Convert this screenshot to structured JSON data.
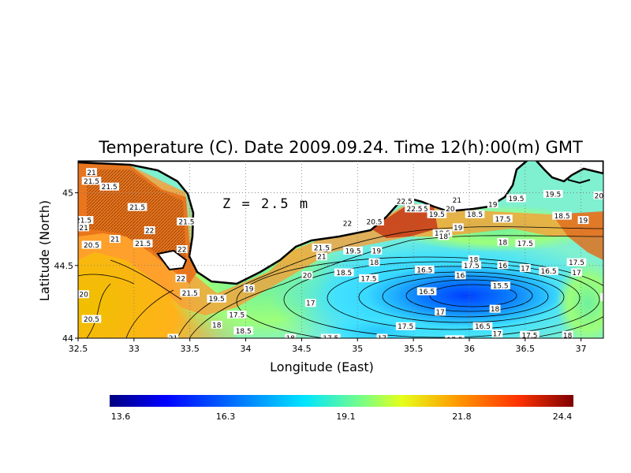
{
  "map": {
    "title": "Temperature (C). Date 2009.09.24. Time 12(h):00(m) GMT",
    "xlabel": "Longitude (East)",
    "ylabel": "Latitude (North)",
    "annotation": "Z = 2.5 m",
    "x_ticks": [
      "32.5",
      "33",
      "33.5",
      "34",
      "34.5",
      "35",
      "35.5",
      "36",
      "36.5",
      "37"
    ],
    "x_tick_values": [
      32.5,
      33,
      33.5,
      34,
      34.5,
      35,
      35.5,
      36,
      36.5,
      37
    ],
    "y_ticks": [
      "44",
      "44.5",
      "45"
    ],
    "y_tick_values": [
      44,
      44.5,
      45
    ],
    "xlim": [
      32.5,
      37.2
    ],
    "ylim": [
      44.0,
      45.22
    ],
    "colorbar": {
      "ticks": [
        "13.6",
        "16.3",
        "19.1",
        "21.8",
        "24.4"
      ],
      "range": [
        13.6,
        24.4
      ],
      "colors": [
        "#00007f",
        "#0000ff",
        "#0088ff",
        "#00e5ff",
        "#7fff7f",
        "#e5ff1a",
        "#ff9900",
        "#ff3300",
        "#7f0000"
      ]
    },
    "land_color": "#ffffff",
    "coast_color": "#000000",
    "contour_labels": [
      {
        "text": "21",
        "lon": 32.62,
        "lat": 45.14
      },
      {
        "text": "21.5",
        "lon": 32.62,
        "lat": 45.08
      },
      {
        "text": "21.5",
        "lon": 32.78,
        "lat": 45.04
      },
      {
        "text": "21.5",
        "lon": 32.55,
        "lat": 44.81
      },
      {
        "text": "21",
        "lon": 32.55,
        "lat": 44.76
      },
      {
        "text": "21",
        "lon": 32.83,
        "lat": 44.68
      },
      {
        "text": "20.5",
        "lon": 32.62,
        "lat": 44.64
      },
      {
        "text": "21.5",
        "lon": 33.03,
        "lat": 44.9
      },
      {
        "text": "22",
        "lon": 33.14,
        "lat": 44.74
      },
      {
        "text": "21.5",
        "lon": 33.08,
        "lat": 44.65
      },
      {
        "text": "21.5",
        "lon": 33.47,
        "lat": 44.8
      },
      {
        "text": "22",
        "lon": 33.43,
        "lat": 44.61
      },
      {
        "text": "22",
        "lon": 33.42,
        "lat": 44.41
      },
      {
        "text": "21.5",
        "lon": 33.5,
        "lat": 44.31
      },
      {
        "text": "20",
        "lon": 32.55,
        "lat": 44.3
      },
      {
        "text": "20.5",
        "lon": 32.62,
        "lat": 44.13
      },
      {
        "text": "21",
        "lon": 33.35,
        "lat": 44.0
      },
      {
        "text": "19.5",
        "lon": 33.74,
        "lat": 44.27
      },
      {
        "text": "19",
        "lon": 34.03,
        "lat": 44.34
      },
      {
        "text": "18",
        "lon": 33.74,
        "lat": 44.09
      },
      {
        "text": "17.5",
        "lon": 33.92,
        "lat": 44.16
      },
      {
        "text": "18.5",
        "lon": 33.98,
        "lat": 44.05
      },
      {
        "text": "18",
        "lon": 34.4,
        "lat": 44.0
      },
      {
        "text": "17.5",
        "lon": 34.76,
        "lat": 44.0
      },
      {
        "text": "17",
        "lon": 34.58,
        "lat": 44.24
      },
      {
        "text": "20",
        "lon": 34.55,
        "lat": 44.43
      },
      {
        "text": "21.5",
        "lon": 34.68,
        "lat": 44.62
      },
      {
        "text": "21",
        "lon": 34.68,
        "lat": 44.56
      },
      {
        "text": "18.5",
        "lon": 34.88,
        "lat": 44.45
      },
      {
        "text": "22",
        "lon": 34.91,
        "lat": 44.79
      },
      {
        "text": "20.5",
        "lon": 35.15,
        "lat": 44.8
      },
      {
        "text": "19.5",
        "lon": 34.96,
        "lat": 44.6
      },
      {
        "text": "19",
        "lon": 35.17,
        "lat": 44.6
      },
      {
        "text": "18",
        "lon": 35.15,
        "lat": 44.52
      },
      {
        "text": "17.5",
        "lon": 35.1,
        "lat": 44.41
      },
      {
        "text": "17",
        "lon": 35.22,
        "lat": 44.0
      },
      {
        "text": "16.5",
        "lon": 35.6,
        "lat": 44.47
      },
      {
        "text": "16.5",
        "lon": 35.62,
        "lat": 44.32
      },
      {
        "text": "17.5",
        "lon": 36.02,
        "lat": 44.5
      },
      {
        "text": "18",
        "lon": 36.04,
        "lat": 44.54
      },
      {
        "text": "16",
        "lon": 35.92,
        "lat": 44.43
      },
      {
        "text": "15.5",
        "lon": 36.28,
        "lat": 44.36
      },
      {
        "text": "16.5",
        "lon": 36.71,
        "lat": 44.46
      },
      {
        "text": "17",
        "lon": 36.96,
        "lat": 44.45
      },
      {
        "text": "17.5",
        "lon": 36.96,
        "lat": 44.52
      },
      {
        "text": "17",
        "lon": 35.74,
        "lat": 44.18
      },
      {
        "text": "17.5",
        "lon": 35.43,
        "lat": 44.08
      },
      {
        "text": "16.5",
        "lon": 36.12,
        "lat": 44.08
      },
      {
        "text": "18",
        "lon": 36.23,
        "lat": 44.2
      },
      {
        "text": "17",
        "lon": 36.25,
        "lat": 44.03
      },
      {
        "text": "17.5",
        "lon": 36.54,
        "lat": 44.02
      },
      {
        "text": "18",
        "lon": 36.88,
        "lat": 44.02
      },
      {
        "text": "17.5",
        "lon": 35.87,
        "lat": 43.99
      },
      {
        "text": "18.5",
        "lon": 35.76,
        "lat": 44.72
      },
      {
        "text": "19",
        "lon": 35.9,
        "lat": 44.76
      },
      {
        "text": "19.5",
        "lon": 35.71,
        "lat": 44.85
      },
      {
        "text": "20.5",
        "lon": 35.56,
        "lat": 44.89
      },
      {
        "text": "22.5",
        "lon": 35.42,
        "lat": 44.94
      },
      {
        "text": "22.5",
        "lon": 35.51,
        "lat": 44.89
      },
      {
        "text": "21",
        "lon": 35.89,
        "lat": 44.95
      },
      {
        "text": "20",
        "lon": 35.83,
        "lat": 44.89
      },
      {
        "text": "18.5",
        "lon": 36.05,
        "lat": 44.85
      },
      {
        "text": "19",
        "lon": 36.21,
        "lat": 44.92
      },
      {
        "text": "19.5",
        "lon": 36.42,
        "lat": 44.96
      },
      {
        "text": "19.5",
        "lon": 36.75,
        "lat": 44.99
      },
      {
        "text": "17.5",
        "lon": 36.3,
        "lat": 44.82
      },
      {
        "text": "18.5",
        "lon": 36.83,
        "lat": 44.84
      },
      {
        "text": "19",
        "lon": 37.02,
        "lat": 44.81
      },
      {
        "text": "20",
        "lon": 37.16,
        "lat": 44.98
      },
      {
        "text": "21",
        "lon": 37.31,
        "lat": 44.98
      },
      {
        "text": "21.5",
        "lon": 37.38,
        "lat": 44.94
      },
      {
        "text": "20",
        "lon": 37.25,
        "lat": 44.86
      },
      {
        "text": "21.5",
        "lon": 37.45,
        "lat": 44.85
      },
      {
        "text": "19.5",
        "lon": 37.32,
        "lat": 44.8
      },
      {
        "text": "18",
        "lon": 36.3,
        "lat": 44.66
      },
      {
        "text": "17.5",
        "lon": 36.5,
        "lat": 44.65
      },
      {
        "text": "18.5",
        "lon": 37.26,
        "lat": 44.28
      },
      {
        "text": "19",
        "lon": 37.49,
        "lat": 44.13
      },
      {
        "text": "19",
        "lon": 37.49,
        "lat": 44.01
      },
      {
        "text": "18",
        "lon": 35.77,
        "lat": 44.7
      },
      {
        "text": "17",
        "lon": 36.5,
        "lat": 44.48
      },
      {
        "text": "16",
        "lon": 36.3,
        "lat": 44.5
      }
    ]
  }
}
